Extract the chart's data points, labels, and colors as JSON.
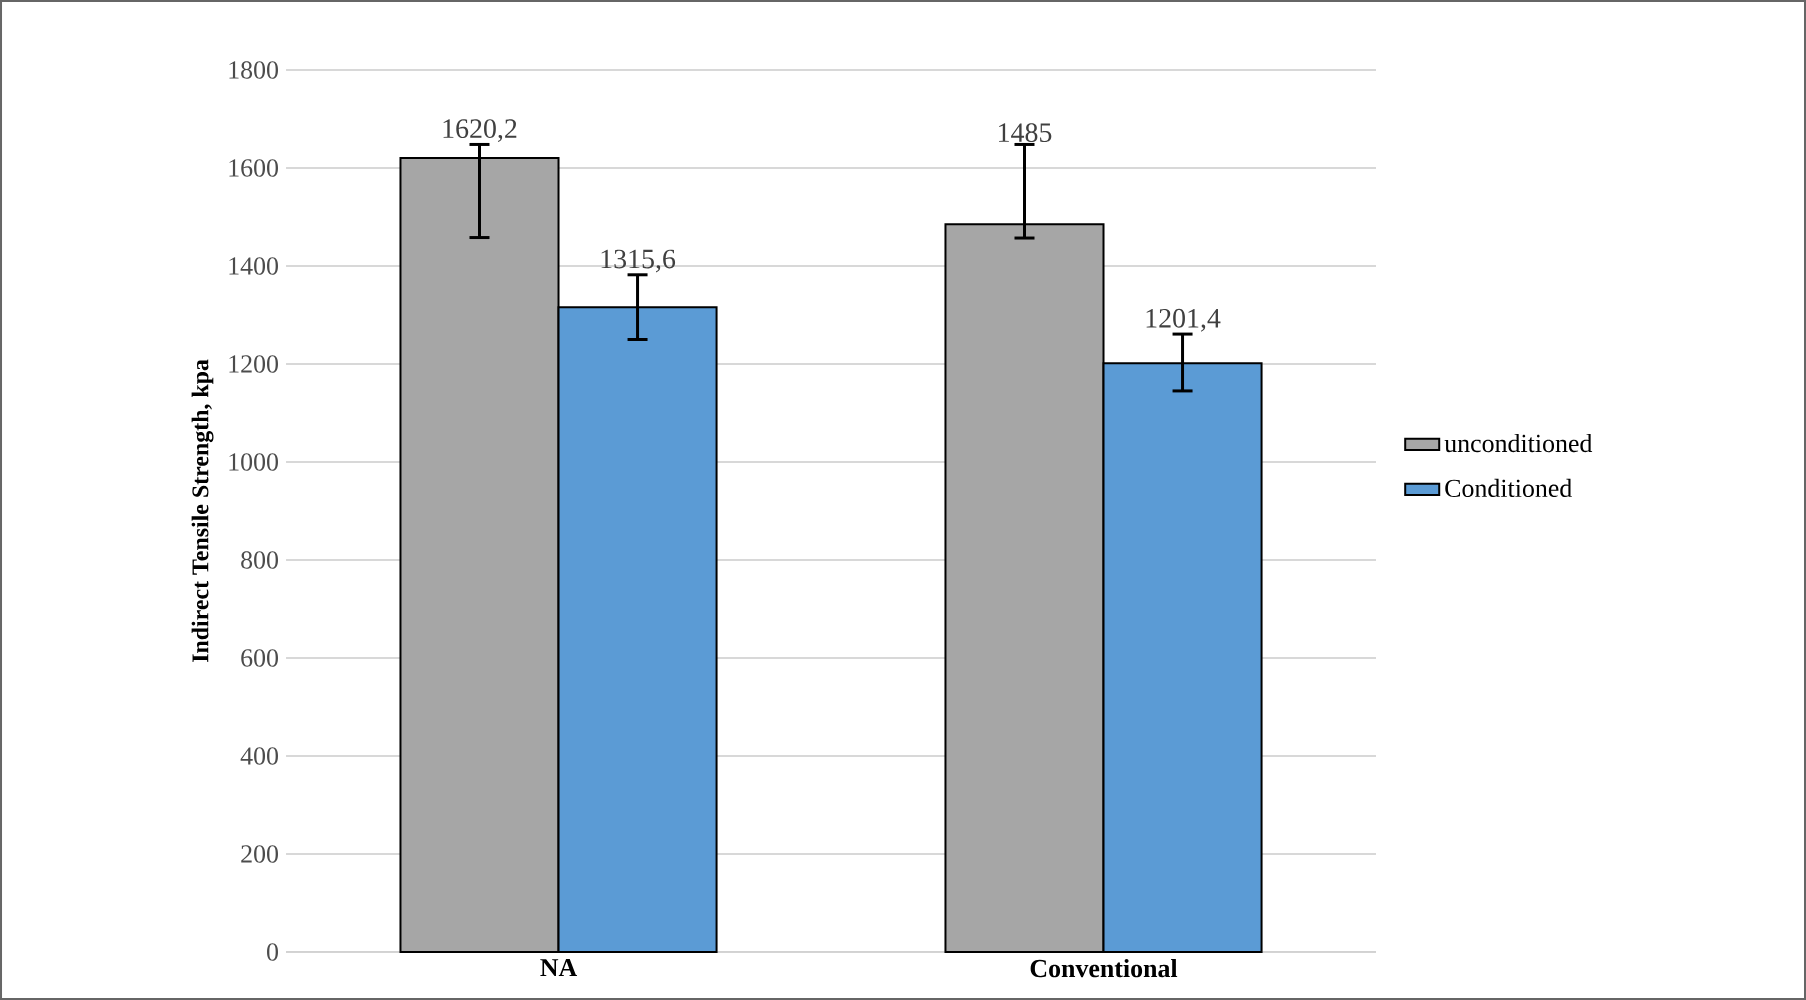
{
  "chart_data": {
    "type": "bar",
    "ylabel": "Indirect Tensile Strength, kpa",
    "categories": [
      "NA",
      "Conventional"
    ],
    "series": [
      {
        "name": "unconditioned",
        "color": "#a6a6a6",
        "values": [
          1620.2,
          1485
        ],
        "errors": [
          [
            1458,
            1648
          ],
          [
            1457,
            1648
          ]
        ],
        "value_labels": [
          "1620,2",
          "1485"
        ]
      },
      {
        "name": "Conditioned",
        "color": "#5b9bd5",
        "values": [
          1315.6,
          1201.4
        ],
        "errors": [
          [
            1250,
            1382
          ],
          [
            1145,
            1261
          ]
        ],
        "value_labels": [
          "1315,6",
          "1201,4"
        ]
      }
    ],
    "ylim": [
      0,
      1800
    ],
    "yticks": [
      0,
      200,
      400,
      600,
      800,
      1000,
      1200,
      1400,
      1600,
      1800
    ],
    "grid": "y",
    "legend": "right"
  }
}
